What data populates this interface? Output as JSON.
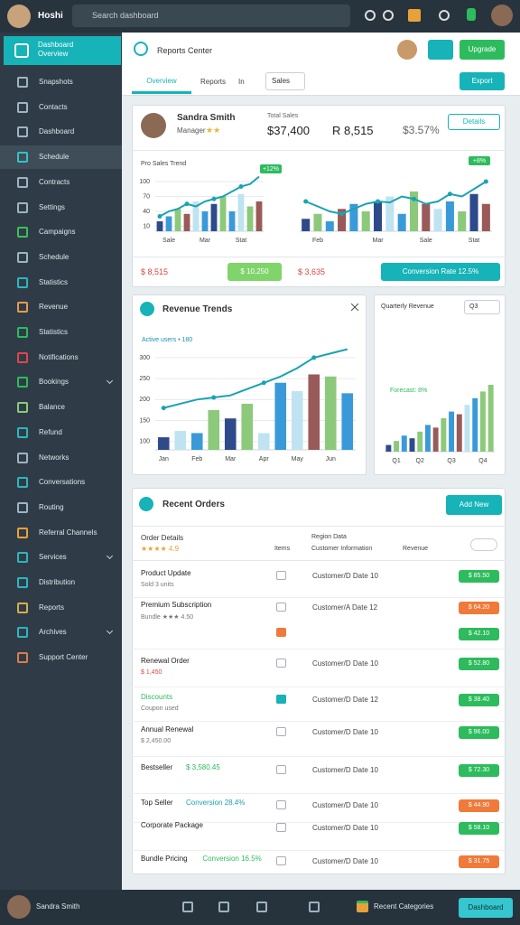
{
  "header": {
    "app_name": "Hoshi",
    "search_placeholder": "Search dashboard"
  },
  "sidebar": {
    "brand_title": "Dashboard",
    "brand_subtitle": "Overview",
    "items": [
      "Snapshots",
      "Contacts",
      "Dashboard",
      "Schedule",
      "Contracts",
      "Settings",
      "Campaigns",
      "Schedule",
      "Statistics",
      "Revenue",
      "Statistics",
      "Notifications",
      "Bookings",
      "Balance",
      "Refund",
      "Networks",
      "Conversations",
      "Routing",
      "Referral Channels",
      "Services",
      "Distribution",
      "Reports",
      "Archives",
      "Support Center"
    ]
  },
  "page": {
    "title": "Reports Center",
    "upgrade_button": "Upgrade",
    "tabs": [
      "Overview",
      "Reports",
      "In"
    ],
    "dropdown": "Sales",
    "export_button": "Export"
  },
  "summary": {
    "name": "Sandra Smith",
    "role": "Manager",
    "stars": "★★",
    "metric_label": "Total Sales",
    "metrics": [
      "$37,400",
      "R 8,515",
      "$3.57%"
    ],
    "details_button": "Details",
    "footer": {
      "left": "$ 8,515",
      "badge": "$ 10,250",
      "middle": "$ 3,635",
      "button": "Conversion Rate 12.5%"
    }
  },
  "charts": [
    {
      "type": "bar",
      "label": "Pro Sales Trend",
      "badge": "+12%",
      "categories": [
        null,
        "Sale",
        null,
        null,
        null,
        "Mar",
        null,
        null,
        null,
        "Stat",
        null,
        null
      ],
      "ylim": [
        0,
        120
      ],
      "yticks": [
        10,
        40,
        70,
        100
      ],
      "series": [
        {
          "type": "bar",
          "values": [
            20,
            30,
            45,
            35,
            60,
            40,
            55,
            70,
            40,
            75,
            50,
            60
          ],
          "colors": [
            "#2e4a8b",
            "#3a9ad9",
            "#8cc97a",
            "#9a5a5a",
            "#bfe3f0",
            "#3a9ad9",
            "#2e4a8b",
            "#8cc97a",
            "#3a9ad9",
            "#bfe3f0",
            "#8cc97a",
            "#9a5a5a"
          ]
        },
        {
          "type": "line",
          "color": "#1aa3b0",
          "values": [
            30,
            40,
            45,
            55,
            50,
            60,
            65,
            70,
            80,
            90,
            95,
            110
          ]
        }
      ]
    },
    {
      "type": "bar",
      "badge": "+8%",
      "categories": [
        null,
        "Feb",
        null,
        null,
        null,
        null,
        "Mar",
        null,
        null,
        null,
        "Sale",
        null,
        null,
        null,
        "Stat",
        null
      ],
      "ylim": [
        0,
        120
      ],
      "series": [
        {
          "type": "bar",
          "values": [
            25,
            35,
            20,
            45,
            55,
            40,
            60,
            70,
            35,
            80,
            55,
            45,
            60,
            40,
            75,
            55
          ],
          "colors": [
            "#2e4a8b",
            "#8cc97a",
            "#3a9ad9",
            "#9a5a5a",
            "#3a9ad9",
            "#8cc97a",
            "#2e4a8b",
            "#bfe3f0",
            "#3a9ad9",
            "#8cc97a",
            "#9a5a5a",
            "#bfe3f0",
            "#3a9ad9",
            "#8cc97a",
            "#2e4a8b",
            "#9a5a5a"
          ]
        },
        {
          "type": "line",
          "color": "#1aa3b0",
          "values": [
            60,
            50,
            40,
            35,
            45,
            55,
            60,
            58,
            70,
            65,
            55,
            60,
            75,
            70,
            85,
            100
          ]
        }
      ]
    },
    {
      "type": "bar",
      "title": "Revenue Trends",
      "annotation": "Active users • 180",
      "categories": [
        "Jan",
        null,
        "Feb",
        null,
        "Mar",
        null,
        "Apr",
        null,
        "May",
        null,
        "Jun",
        null
      ],
      "ylim": [
        80,
        330
      ],
      "yticks": [
        100,
        150,
        200,
        250,
        300
      ],
      "series": [
        {
          "type": "bar",
          "values": [
            110,
            125,
            120,
            175,
            155,
            190,
            120,
            240,
            220,
            260,
            255,
            215
          ],
          "colors": [
            "#2e4a8b",
            "#bfe3f0",
            "#3a9ad9",
            "#8cc97a",
            "#2e4a8b",
            "#8cc97a",
            "#bfe3f0",
            "#3a9ad9",
            "#bfe3f0",
            "#9a5a5a",
            "#8cc97a",
            "#3a9ad9"
          ]
        },
        {
          "type": "line",
          "color": "#1aa3b0",
          "values": [
            180,
            190,
            200,
            205,
            210,
            225,
            240,
            255,
            275,
            300,
            310,
            320
          ]
        }
      ]
    },
    {
      "type": "bar",
      "title": "Quarterly Revenue",
      "dropdown": "Q3",
      "annotation": "Forecast: 8%",
      "categories": [
        null,
        "Q1",
        null,
        null,
        "Q2",
        null,
        null,
        null,
        "Q3",
        null,
        null,
        null,
        "Q4",
        null
      ],
      "ylim": [
        0,
        100
      ],
      "series": [
        {
          "type": "bar",
          "values": [
            5,
            8,
            12,
            10,
            15,
            20,
            18,
            25,
            30,
            28,
            35,
            40,
            45,
            50
          ],
          "colors": [
            "#2e4a8b",
            "#8cc97a",
            "#3a9ad9",
            "#2e4a8b",
            "#8cc97a",
            "#3a9ad9",
            "#9a5a5a",
            "#8cc97a",
            "#3a9ad9",
            "#9a5a5a",
            "#bfe3f0",
            "#3a9ad9",
            "#8cc97a",
            "#8cc97a"
          ]
        }
      ]
    }
  ],
  "table": {
    "title": "Recent Orders",
    "add_button": "Add New",
    "headers": [
      "Order Details",
      "Items",
      "Customer Information",
      "Revenue"
    ],
    "header_rating": "★★★★ 4.9",
    "header_group": "Region Data",
    "rows": [
      {
        "title": "Product Update",
        "subtitle": "Sold 3 units",
        "customer": "Customer/D Date 10",
        "badges": [
          {
            "text": "$ 85.50",
            "color": "#2dbb5d"
          }
        ]
      },
      {
        "title": "Premium Subscription",
        "subtitle": "Bundle ★★★ 4.50",
        "customer": "Customer/A Date 12",
        "badges": [
          {
            "text": "$ 64.20",
            "color": "#ef7a3a"
          },
          {
            "text": "$ 42.10",
            "color": "#2dbb5d"
          }
        ]
      },
      {
        "title": "Renewal Order",
        "subtitle": "$ 1,450",
        "customer": "Customer/D Date 10",
        "badges": [
          {
            "text": "$ 52.80",
            "color": "#2dbb5d"
          }
        ]
      },
      {
        "title": "Discounts",
        "title_color": "#2dbb5d",
        "subtitle": "Coupon used",
        "customer": "Customer/D Date 12",
        "badges": [
          {
            "text": "$ 38.40",
            "color": "#2dbb5d"
          }
        ]
      },
      {
        "title": "Annual Renewal",
        "subtitle": "$ 2,450.00",
        "customer": "Customer/D Date 10",
        "badges": [
          {
            "text": "$ 96.00",
            "color": "#2dbb5d"
          }
        ]
      },
      {
        "title": "Bestseller",
        "note": "$ 3,580.45",
        "note_color": "#2dbb5d",
        "customer": "Customer/D Date 10",
        "badges": [
          {
            "text": "$ 72.30",
            "color": "#2dbb5d"
          }
        ]
      },
      {
        "title": "Top Seller",
        "note": "Conversion 28.4%",
        "note_color": "#1aa3b0",
        "customer": "Customer/D Date 10",
        "badges": [
          {
            "text": "$ 44.90",
            "color": "#ef7a3a"
          }
        ]
      },
      {
        "title": "Corporate Package",
        "customer": "Customer/D Date 10",
        "badges": [
          {
            "text": "$ 58.10",
            "color": "#2dbb5d"
          }
        ]
      },
      {
        "title": "Bundle Pricing",
        "note": "Conversion 16.5%",
        "note_color": "#2dbb5d",
        "customer": "Customer/D Date 10",
        "badges": [
          {
            "text": "$ 31.75",
            "color": "#ef7a3a"
          }
        ]
      }
    ]
  },
  "footer": {
    "user_name": "Sandra Smith",
    "label": "Recent Categories",
    "button": "Dashboard"
  }
}
